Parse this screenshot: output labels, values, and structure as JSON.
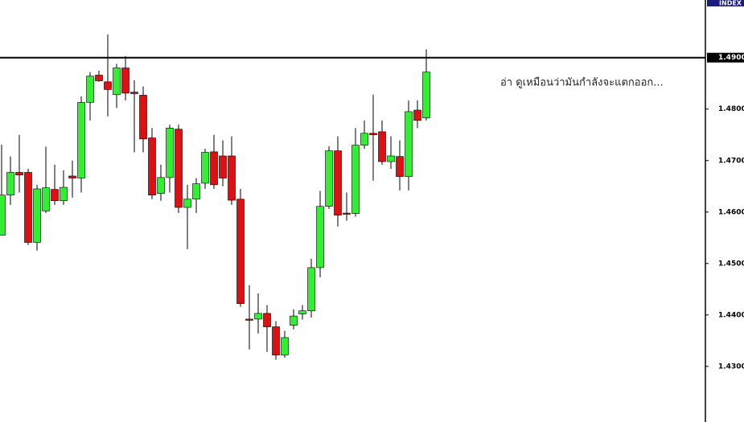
{
  "chart_data": {
    "type": "candlestick",
    "header": "INDEX",
    "annotation": "อ่า ดูเหมือนว่ามันกำลังจะแตกออก...",
    "up_color": "#33ee33",
    "down_color": "#dd1111",
    "open": [
      1.4555,
      1.4633,
      1.4677,
      1.4677,
      1.4541,
      1.4602,
      1.4644,
      1.4622,
      1.467,
      1.4666,
      1.4813,
      1.4866,
      1.4853,
      1.4828,
      1.488,
      1.4833,
      1.4827,
      1.4744,
      1.4636,
      1.4667,
      1.4761,
      1.4609,
      1.4625,
      1.4656,
      1.4717,
      1.4709,
      1.4709,
      1.4625,
      1.4392,
      1.4392,
      1.4403,
      1.4377,
      1.4322,
      1.438,
      1.4402,
      1.4408,
      1.4492,
      1.4611,
      1.4719,
      1.4598,
      1.4597,
      1.473,
      1.4753,
      1.4756,
      1.4698,
      1.4708,
      1.4669,
      1.4798,
      1.4783
    ],
    "high": [
      1.4731,
      1.4708,
      1.475,
      1.4684,
      1.4653,
      1.4727,
      1.4692,
      1.4681,
      1.47,
      1.4825,
      1.4872,
      1.4875,
      1.4945,
      1.4888,
      1.4903,
      1.4856,
      1.4844,
      1.4763,
      1.4692,
      1.477,
      1.477,
      1.4653,
      1.4666,
      1.4723,
      1.475,
      1.4739,
      1.4747,
      1.4645,
      1.4458,
      1.4442,
      1.4419,
      1.4388,
      1.4369,
      1.4411,
      1.4419,
      1.4509,
      1.4641,
      1.4728,
      1.4747,
      1.4638,
      1.4763,
      1.4778,
      1.4828,
      1.4778,
      1.4747,
      1.4739,
      1.4817,
      1.4817,
      1.4916
    ],
    "low": [
      1.4555,
      1.4614,
      1.4638,
      1.4536,
      1.4525,
      1.4598,
      1.4614,
      1.4614,
      1.4628,
      1.4638,
      1.4778,
      1.4853,
      1.4786,
      1.4802,
      1.4817,
      1.4716,
      1.4716,
      1.4625,
      1.4622,
      1.4638,
      1.4598,
      1.4528,
      1.4598,
      1.4645,
      1.4645,
      1.465,
      1.4614,
      1.4416,
      1.4333,
      1.4364,
      1.4328,
      1.4313,
      1.4317,
      1.4372,
      1.4391,
      1.4395,
      1.4473,
      1.4606,
      1.4572,
      1.4583,
      1.4591,
      1.4723,
      1.4661,
      1.4692,
      1.4684,
      1.4642,
      1.4642,
      1.4763,
      1.4778
    ],
    "close": [
      1.4633,
      1.4677,
      1.4672,
      1.4541,
      1.4645,
      1.4647,
      1.4622,
      1.4648,
      1.4666,
      1.4813,
      1.4864,
      1.4855,
      1.4838,
      1.488,
      1.4831,
      1.483,
      1.4742,
      1.4633,
      1.4667,
      1.4763,
      1.4609,
      1.4625,
      1.4655,
      1.4716,
      1.4653,
      1.4666,
      1.4623,
      1.4422,
      1.4391,
      1.4403,
      1.4377,
      1.4322,
      1.4356,
      1.4398,
      1.4408,
      1.4492,
      1.4611,
      1.4719,
      1.4594,
      1.4597,
      1.473,
      1.4753,
      1.475,
      1.4698,
      1.4709,
      1.4669,
      1.4795,
      1.4778,
      1.4872
    ],
    "ylim": [
      1.4192,
      1.5012
    ],
    "yticks": [
      {
        "value": 1.43,
        "label": "1.4300"
      },
      {
        "value": 1.44,
        "label": "1.4400"
      },
      {
        "value": 1.45,
        "label": "1.4500"
      },
      {
        "value": 1.46,
        "label": "1.4600"
      },
      {
        "value": 1.47,
        "label": "1.4700"
      },
      {
        "value": 1.48,
        "label": "1.4800"
      }
    ],
    "hline": {
      "value": 1.49,
      "label": "1.4900"
    }
  }
}
